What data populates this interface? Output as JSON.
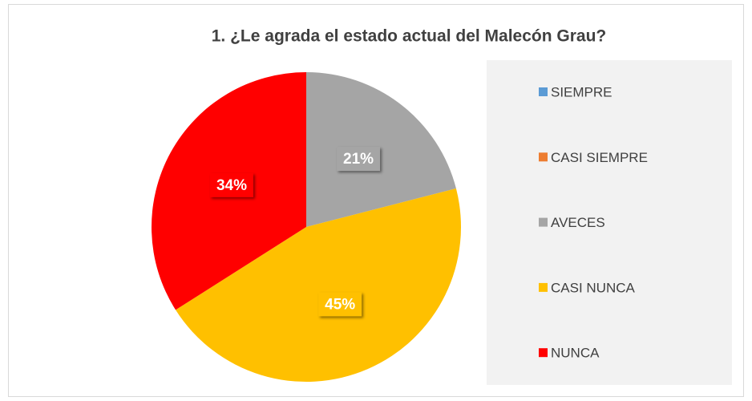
{
  "chart_data": {
    "type": "pie",
    "title": "1. ¿Le agrada el estado actual del Malecón Grau?",
    "categories": [
      "SIEMPRE",
      "CASI SIEMPRE",
      "AVECES",
      "CASI NUNCA",
      "NUNCA"
    ],
    "values": [
      0,
      0,
      21,
      45,
      34
    ],
    "value_labels": [
      null,
      null,
      "21%",
      "45%",
      "34%"
    ],
    "colors": [
      "#5b9bd5",
      "#ed7d31",
      "#a5a5a5",
      "#ffc000",
      "#ff0000"
    ],
    "legend": "right"
  }
}
